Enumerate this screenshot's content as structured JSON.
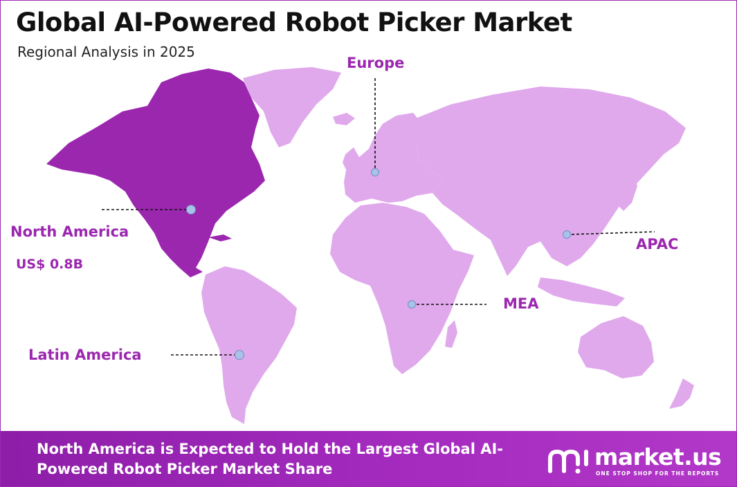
{
  "header": {
    "title": "Global AI-Powered Robot Picker Market",
    "subtitle": "Regional Analysis in 2025"
  },
  "regions": {
    "europe": {
      "label": "Europe"
    },
    "north_america": {
      "label": "North America",
      "value": "US$ 0.8B"
    },
    "apac": {
      "label": "APAC"
    },
    "mea": {
      "label": "MEA"
    },
    "latin_america": {
      "label": "Latin America"
    }
  },
  "highlighted_region": "north_america",
  "colors": {
    "highlight": "#9b27af",
    "land": "#e0a9ec",
    "marker": "#a8c2e8",
    "banner": "#9b27af"
  },
  "banner": {
    "text": "North America is Expected to Hold the Largest Global AI-Powered Robot Picker Market Share"
  },
  "logo": {
    "name": "market.us",
    "tagline": "ONE STOP SHOP FOR THE REPORTS",
    "icon": "market-us-logo-icon"
  }
}
